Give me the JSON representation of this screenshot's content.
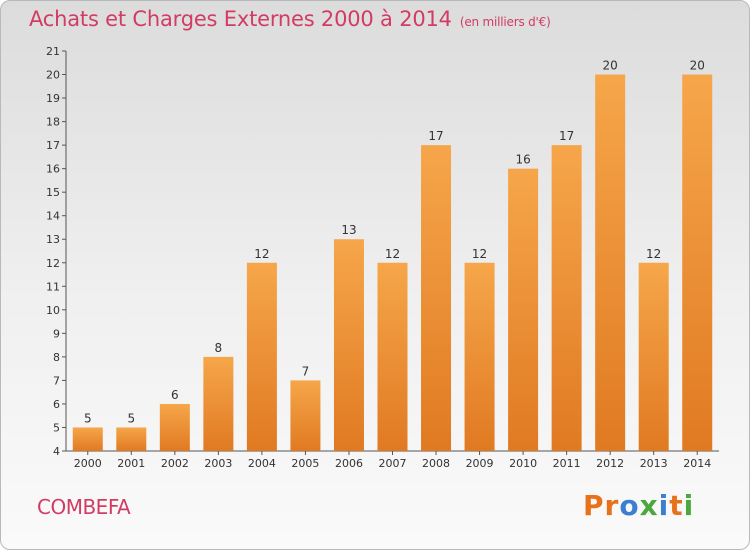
{
  "title": "Achats et Charges Externes 2000 à 2014",
  "title_unit": "(en milliers d'€)",
  "commune": "COMBEFA",
  "logo_text": "Proxiti",
  "logo_colors": [
    "#e8721c",
    "#e8721c",
    "#3a7fd0",
    "#4aa83c",
    "#3a7fd0",
    "#e8721c",
    "#4aa83c"
  ],
  "chart_data": {
    "type": "bar",
    "title": "Achats et Charges Externes 2000 à 2014",
    "unit": "(en milliers d'€)",
    "categories": [
      "2000",
      "2001",
      "2002",
      "2003",
      "2004",
      "2005",
      "2006",
      "2007",
      "2008",
      "2009",
      "2010",
      "2011",
      "2012",
      "2013",
      "2014"
    ],
    "values": [
      5,
      5,
      6,
      8,
      12,
      7,
      13,
      12,
      17,
      12,
      16,
      17,
      20,
      12,
      20
    ],
    "ylim": [
      4,
      21
    ],
    "yticks": [
      4,
      5,
      6,
      7,
      8,
      9,
      10,
      11,
      12,
      13,
      14,
      15,
      16,
      17,
      18,
      19,
      20,
      21
    ],
    "grid": false,
    "bar_color": "#f39b3c",
    "data_labels": true
  }
}
